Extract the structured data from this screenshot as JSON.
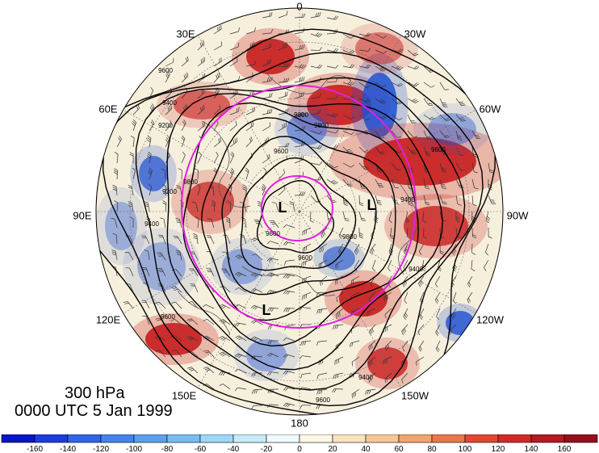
{
  "map": {
    "level_label": "300 hPa",
    "time_label": "0000 UTC 5 Jan 1999",
    "lon_labels": [
      "0",
      "30W",
      "60W",
      "90W",
      "120W",
      "150W",
      "180",
      "150E",
      "120E",
      "90E",
      "60E",
      "30E"
    ],
    "contour_labels": [
      "9600",
      "9400",
      "9200",
      "9800",
      "9800",
      "9600",
      "9600",
      "9800",
      "9400",
      "9200",
      "9400",
      "9600",
      "9800",
      "9600",
      "9400",
      "9600",
      "9400",
      "9600"
    ],
    "low_labels": [
      "L",
      "L",
      "L"
    ],
    "colors": {
      "ring": "#e020e0",
      "contour": "#000000",
      "strong_positive": "#c81e1e",
      "strong_negative": "#1e50d2"
    }
  },
  "colorbar": {
    "tick_labels": [
      "-160",
      "-140",
      "-120",
      "-100",
      "-80",
      "-60",
      "-40",
      "-20",
      "0",
      "20",
      "40",
      "60",
      "80",
      "100",
      "120",
      "140",
      "160"
    ],
    "colors": [
      "#0a14c8",
      "#1e3cdc",
      "#3264e6",
      "#4682eb",
      "#5aa0ee",
      "#78bdf2",
      "#a0d7f5",
      "#c8ebf8",
      "#f0fbfd",
      "#fdf7e6",
      "#f8e3c0",
      "#f5c796",
      "#f0a46e",
      "#e8784c",
      "#e04832",
      "#cf2a28",
      "#b31a24",
      "#960e1c"
    ]
  }
}
